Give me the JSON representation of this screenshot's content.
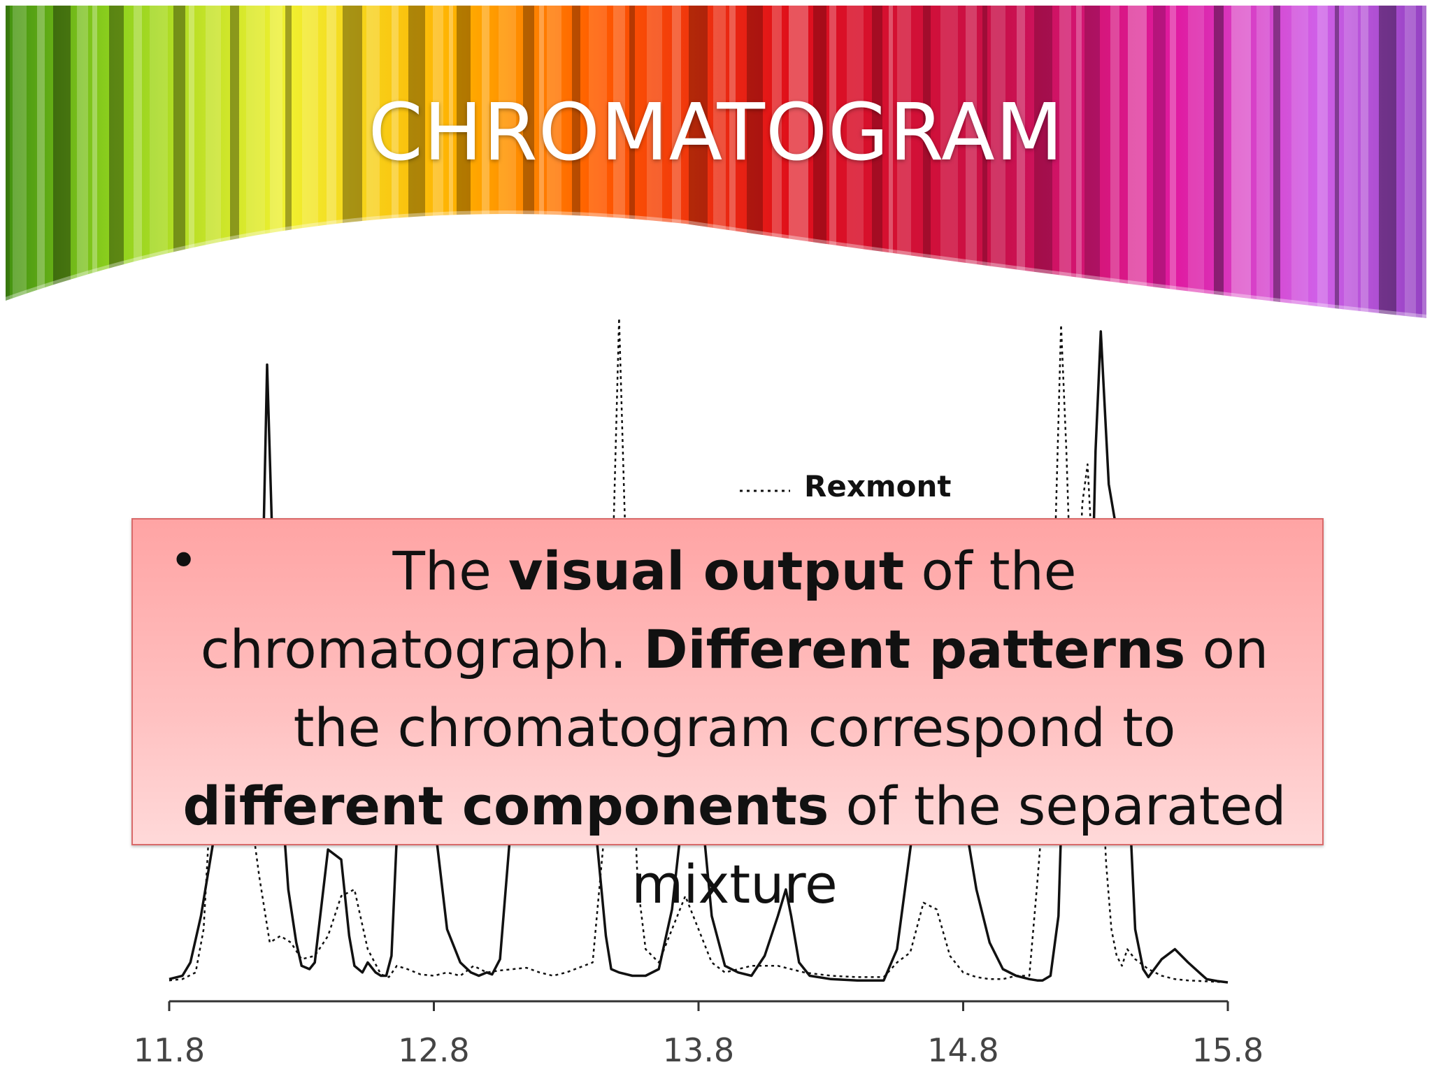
{
  "slide": {
    "title": "CHROMATOGRAM"
  },
  "callout": {
    "bullet": "•",
    "segments": [
      {
        "text": "The ",
        "bold": false
      },
      {
        "text": "visual output",
        "bold": true
      },
      {
        "text": " of the chromatograph. ",
        "bold": false
      },
      {
        "text": "Different patterns",
        "bold": true
      },
      {
        "text": " on the chromatogram correspond to ",
        "bold": false
      },
      {
        "text": "different components",
        "bold": true
      },
      {
        "text": " of the separated mixture",
        "bold": false
      }
    ]
  },
  "chart_data": {
    "type": "line",
    "title": "",
    "xlabel": "",
    "ylabel": "",
    "xlim": [
      11.8,
      15.8
    ],
    "ylim": [
      0,
      100
    ],
    "x_ticks": [
      11.8,
      12.8,
      13.8,
      14.8,
      15.8
    ],
    "x_tick_labels": [
      "11.8",
      "12.8",
      "13.8",
      "14.8",
      "15.8"
    ],
    "legend": {
      "placement": "top-center",
      "entries": [
        {
          "label": "Rexmont",
          "style": "dotted"
        }
      ]
    },
    "series": [
      {
        "style": "solid",
        "x": [
          11.8,
          11.85,
          11.88,
          11.92,
          11.97,
          12.0,
          12.05,
          12.1,
          12.13,
          12.15,
          12.17,
          12.19,
          12.21,
          12.23,
          12.25,
          12.28,
          12.3,
          12.33,
          12.35,
          12.4,
          12.45,
          12.48,
          12.5,
          12.53,
          12.55,
          12.58,
          12.6,
          12.62,
          12.64,
          12.66,
          12.68,
          12.7,
          12.72,
          12.75,
          12.8,
          12.85,
          12.9,
          12.94,
          12.97,
          13.0,
          13.02,
          13.05,
          13.1,
          13.2,
          13.3,
          13.4,
          13.45,
          13.47,
          13.5,
          13.55,
          13.6,
          13.65,
          13.7,
          13.75,
          13.8,
          13.85,
          13.9,
          13.95,
          14.0,
          14.05,
          14.1,
          14.13,
          14.15,
          14.18,
          14.22,
          14.3,
          14.4,
          14.5,
          14.55,
          14.6,
          14.65,
          14.7,
          14.75,
          14.8,
          14.85,
          14.9,
          14.95,
          15.0,
          15.05,
          15.08,
          15.1,
          15.13,
          15.16,
          15.18,
          15.2,
          15.22,
          15.25,
          15.28,
          15.3,
          15.32,
          15.35,
          15.38,
          15.4,
          15.43,
          15.45,
          15.48,
          15.5,
          15.55,
          15.6,
          15.65,
          15.7,
          15.72,
          15.76,
          15.8
        ],
        "y": [
          0.5,
          1.0,
          3.0,
          10.0,
          22.0,
          28.0,
          26.0,
          24.0,
          30.0,
          55.0,
          93.0,
          66.0,
          40.0,
          25.0,
          14.0,
          6.0,
          2.5,
          2.0,
          3.0,
          20.0,
          18.5,
          7.0,
          2.5,
          1.5,
          3.0,
          1.5,
          1.0,
          1.0,
          4.0,
          22.0,
          38.0,
          42.0,
          40.0,
          34.0,
          25.0,
          8.0,
          3.0,
          1.5,
          1.0,
          1.5,
          1.2,
          3.5,
          28.0,
          44.0,
          44.0,
          28.0,
          7.0,
          2.0,
          1.5,
          1.0,
          1.0,
          2.0,
          11.0,
          29.0,
          31.0,
          10.0,
          2.5,
          1.5,
          1.0,
          4.0,
          10.0,
          14.0,
          10.0,
          3.0,
          1.0,
          0.5,
          0.3,
          0.3,
          5.0,
          20.0,
          36.0,
          38.0,
          34.0,
          26.0,
          14.0,
          6.0,
          2.0,
          1.0,
          0.5,
          0.3,
          0.3,
          1.0,
          10.0,
          36.0,
          40.0,
          41.0,
          38.0,
          45.0,
          80.0,
          98.0,
          75.0,
          68.0,
          40.0,
          25.0,
          8.0,
          2.0,
          0.8,
          3.5,
          5.0,
          3.0,
          1.2,
          0.5,
          0.2,
          0.0
        ]
      },
      {
        "name": "Rexmont",
        "style": "dotted",
        "x": [
          11.8,
          11.85,
          11.9,
          11.93,
          11.96,
          11.98,
          12.0,
          12.02,
          12.04,
          12.06,
          12.1,
          12.14,
          12.18,
          12.22,
          12.26,
          12.3,
          12.35,
          12.4,
          12.45,
          12.5,
          12.55,
          12.6,
          12.63,
          12.66,
          12.7,
          12.75,
          12.8,
          12.85,
          12.9,
          12.95,
          13.0,
          13.05,
          13.1,
          13.15,
          13.2,
          13.25,
          13.3,
          13.4,
          13.45,
          13.48,
          13.5,
          13.52,
          13.55,
          13.57,
          13.6,
          13.65,
          13.7,
          13.75,
          13.8,
          13.85,
          13.9,
          14.0,
          14.1,
          14.2,
          14.3,
          14.4,
          14.5,
          14.55,
          14.6,
          14.65,
          14.7,
          14.75,
          14.8,
          14.85,
          14.9,
          14.95,
          15.0,
          15.05,
          15.08,
          15.12,
          15.15,
          15.17,
          15.19,
          15.21,
          15.23,
          15.25,
          15.27,
          15.3,
          15.32,
          15.34,
          15.36,
          15.38,
          15.4,
          15.42,
          15.45,
          15.5,
          15.55,
          15.6,
          15.65,
          15.7,
          15.75,
          15.8
        ],
        "y": [
          0.3,
          0.5,
          1.5,
          8.0,
          30.0,
          50.0,
          55.0,
          50.0,
          42.0,
          34.0,
          28.0,
          16.0,
          6.0,
          7.0,
          6.0,
          3.5,
          4.0,
          7.0,
          13.0,
          14.0,
          5.0,
          1.2,
          0.8,
          2.5,
          2.0,
          1.2,
          1.0,
          1.5,
          1.0,
          2.5,
          1.5,
          1.8,
          2.0,
          2.2,
          1.5,
          1.0,
          1.5,
          3.0,
          25.0,
          70.0,
          100.0,
          72.0,
          35.0,
          15.0,
          5.0,
          3.0,
          8.0,
          13.0,
          8.0,
          3.0,
          1.5,
          2.5,
          2.5,
          1.5,
          1.0,
          0.8,
          0.8,
          3.0,
          4.5,
          12.0,
          11.0,
          4.0,
          1.5,
          0.8,
          0.5,
          0.5,
          1.0,
          1.0,
          15.0,
          35.0,
          70.0,
          99.0,
          80.0,
          55.0,
          50.0,
          72.0,
          78.0,
          55.0,
          35.0,
          18.0,
          8.0,
          4.0,
          2.5,
          5.0,
          3.5,
          2.0,
          1.0,
          0.5,
          0.3,
          0.2,
          0.1,
          0.0
        ]
      }
    ]
  }
}
